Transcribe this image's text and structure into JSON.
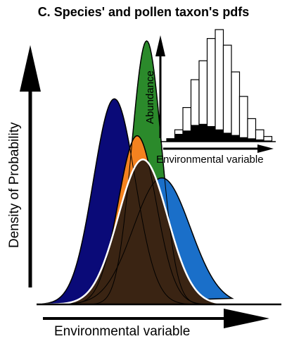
{
  "title": "C. Species' and pollen taxon's pdfs",
  "main_axes": {
    "y_label": "Density of Probability",
    "x_label": "Environmental variable"
  },
  "inset": {
    "y_label": "Abundance",
    "x_label": "Environmental variable",
    "bar_color_total": "#ffffff",
    "bar_color_subset": "#000000",
    "bars_total": [
      0.02,
      0.1,
      0.3,
      0.55,
      0.72,
      0.92,
      1.0,
      0.86,
      0.62,
      0.4,
      0.2,
      0.1,
      0.04
    ],
    "bars_subset": [
      0.02,
      0.06,
      0.09,
      0.14,
      0.15,
      0.13,
      0.1,
      0.07,
      0.05,
      0.03,
      0.02,
      0.01,
      0.0
    ]
  },
  "curves": [
    {
      "id": "navy",
      "color": "#0a0a78",
      "mu": 0.38,
      "sigma": 0.11,
      "height": 0.78
    },
    {
      "id": "green",
      "color": "#2b8a2b",
      "mu": 0.55,
      "sigma": 0.078,
      "height": 1.0
    },
    {
      "id": "orange",
      "color": "#f4821f",
      "mu": 0.5,
      "sigma": 0.1,
      "height": 0.64
    },
    {
      "id": "blue",
      "color": "#1a6fc9",
      "mu": 0.63,
      "sigma": 0.15,
      "height": 0.48
    },
    {
      "id": "pollen",
      "color": "#3a2413",
      "mu": 0.53,
      "sigma": 0.13,
      "height": 0.55
    }
  ]
}
